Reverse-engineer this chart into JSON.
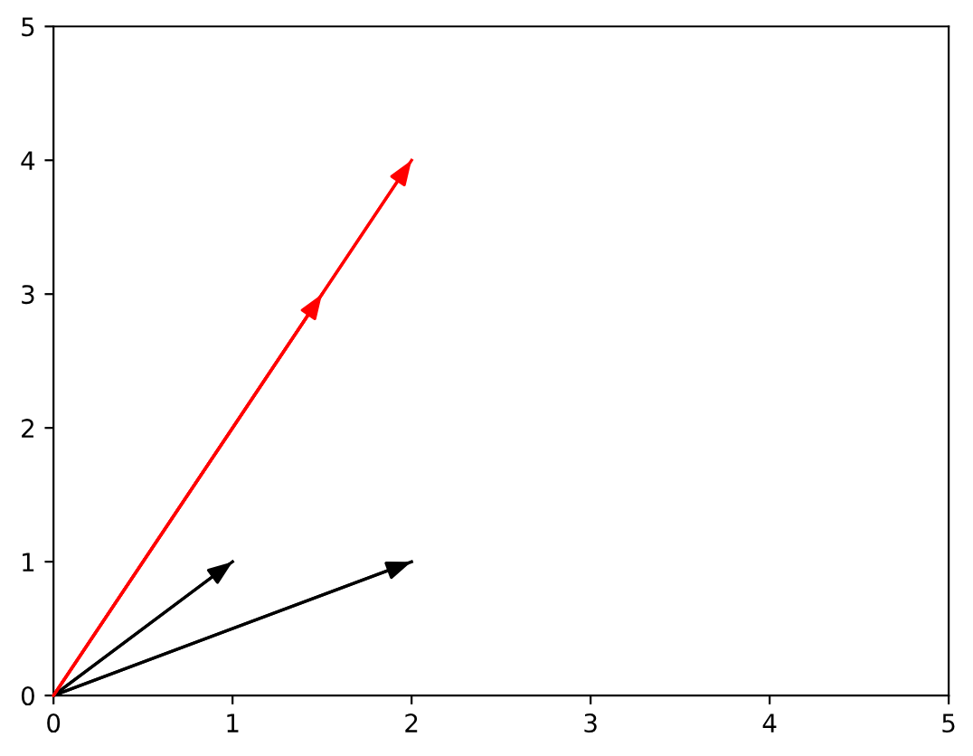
{
  "chart_data": {
    "type": "line",
    "xlim": [
      0,
      5
    ],
    "ylim": [
      0,
      5
    ],
    "xticks": [
      0,
      1,
      2,
      3,
      4,
      5
    ],
    "yticks": [
      0,
      1,
      2,
      3,
      4,
      5
    ],
    "grid": false,
    "marker": "none",
    "line_style": "solid",
    "series": [
      {
        "color": "#000000",
        "x": [
          0,
          1
        ],
        "values": [
          0,
          1
        ]
      },
      {
        "color": "#000000",
        "x": [
          0,
          2
        ],
        "values": [
          0,
          1
        ]
      },
      {
        "color": "#ff0000",
        "x": [
          0,
          1.5
        ],
        "values": [
          0,
          3
        ]
      },
      {
        "color": "#ff0000",
        "x": [
          0,
          2
        ],
        "values": [
          0,
          4
        ]
      }
    ]
  }
}
